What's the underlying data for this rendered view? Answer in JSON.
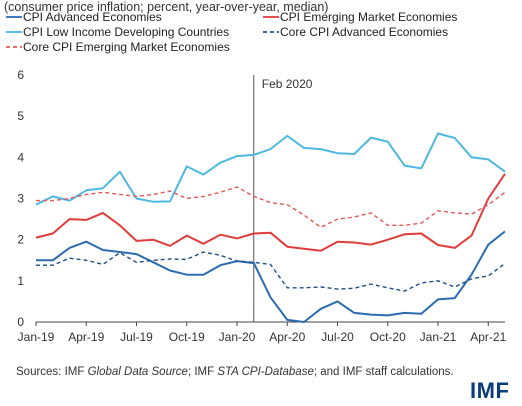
{
  "subtitle": "(consumer price inflation; percent, year-over-year, median)",
  "source": {
    "prefix": "Sources: IMF ",
    "gds": "Global Data Source",
    "mid": "; IMF ",
    "sta": "STA CPI-Database",
    "suffix": "; and IMF staff calculations."
  },
  "logo": "IMF",
  "chart_data": {
    "type": "line",
    "x": [
      "2019-01",
      "2019-02",
      "2019-03",
      "2019-04",
      "2019-05",
      "2019-06",
      "2019-07",
      "2019-08",
      "2019-09",
      "2019-10",
      "2019-11",
      "2019-12",
      "2020-01",
      "2020-02",
      "2020-03",
      "2020-04",
      "2020-05",
      "2020-06",
      "2020-07",
      "2020-08",
      "2020-09",
      "2020-10",
      "2020-11",
      "2020-12",
      "2021-01",
      "2021-02",
      "2021-03",
      "2021-04",
      "2021-05"
    ],
    "x_tick_labels": [
      "Jan-19",
      "Apr-19",
      "Jul-19",
      "Oct-19",
      "Jan-20",
      "Apr-20",
      "Jul-20",
      "Oct-20",
      "Jan-21",
      "Apr-21"
    ],
    "ylim": [
      0,
      6
    ],
    "yticks": [
      0,
      1,
      2,
      3,
      4,
      5,
      6
    ],
    "annotation": {
      "label": "Feb 2020",
      "x": "2020-02"
    },
    "legend_position": "top",
    "series": [
      {
        "name": "CPI Advanced Economies",
        "color": "#2b6cb0",
        "dash": "solid",
        "values": [
          1.5,
          1.5,
          1.8,
          1.95,
          1.75,
          1.7,
          1.65,
          1.45,
          1.25,
          1.15,
          1.15,
          1.38,
          1.48,
          1.43,
          0.6,
          0.05,
          0.0,
          0.32,
          0.5,
          0.22,
          0.18,
          0.16,
          0.22,
          0.2,
          0.55,
          0.58,
          1.15,
          1.88,
          2.2
        ]
      },
      {
        "name": "CPI Emerging Market Economies",
        "color": "#e03c3c",
        "dash": "solid",
        "values": [
          2.05,
          2.15,
          2.5,
          2.48,
          2.65,
          2.35,
          1.97,
          2.0,
          1.85,
          2.1,
          1.9,
          2.12,
          2.03,
          2.15,
          2.17,
          1.83,
          1.78,
          1.73,
          1.95,
          1.93,
          1.88,
          2.0,
          2.13,
          2.15,
          1.87,
          1.8,
          2.1,
          3.0,
          3.6
        ]
      },
      {
        "name": "CPI Low Income Developing Countries",
        "color": "#4db8e0",
        "dash": "solid",
        "values": [
          2.85,
          3.05,
          2.95,
          3.2,
          3.25,
          3.65,
          3.0,
          2.92,
          2.93,
          3.78,
          3.58,
          3.87,
          4.03,
          4.06,
          4.2,
          4.52,
          4.23,
          4.2,
          4.1,
          4.08,
          4.48,
          4.38,
          3.8,
          3.73,
          4.58,
          4.47,
          4.0,
          3.95,
          3.65
        ]
      },
      {
        "name": "Core CPI Advanced Economies",
        "color": "#1e4f8a",
        "dash": "dashed",
        "values": [
          1.38,
          1.38,
          1.55,
          1.5,
          1.4,
          1.68,
          1.45,
          1.5,
          1.53,
          1.52,
          1.7,
          1.62,
          1.48,
          1.45,
          1.4,
          0.83,
          0.83,
          0.85,
          0.8,
          0.82,
          0.92,
          0.83,
          0.75,
          0.95,
          1.0,
          0.85,
          1.05,
          1.12,
          1.42
        ]
      },
      {
        "name": "Core CPI Emerging Market Economies",
        "color": "#e05a5a",
        "dash": "dashed",
        "values": [
          2.95,
          2.95,
          3.0,
          3.1,
          3.15,
          3.1,
          3.05,
          3.1,
          3.18,
          3.0,
          3.05,
          3.15,
          3.28,
          3.05,
          2.9,
          2.85,
          2.6,
          2.3,
          2.5,
          2.55,
          2.65,
          2.35,
          2.35,
          2.4,
          2.7,
          2.65,
          2.62,
          2.85,
          3.15
        ]
      }
    ]
  }
}
